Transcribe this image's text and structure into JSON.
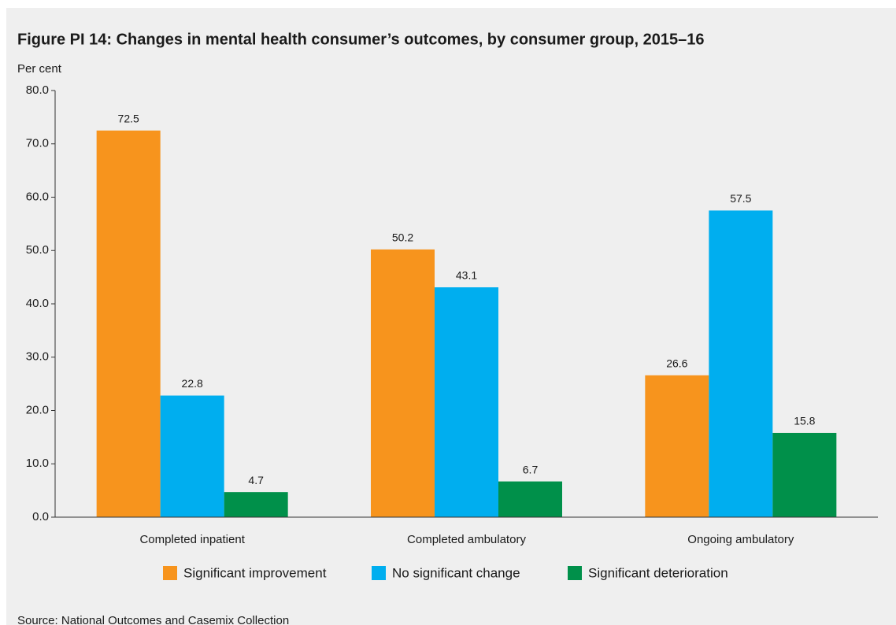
{
  "chart_data": {
    "type": "bar",
    "title": "Figure PI 14: Changes in mental health consumer’s outcomes, by consumer group, 2015–16",
    "y_label": "Per cent",
    "source": "Source: National Outcomes and Casemix Collection",
    "categories": [
      "Completed inpatient",
      "Completed ambulatory",
      "Ongoing ambulatory"
    ],
    "series": [
      {
        "name": "Significant improvement",
        "color": "#f7941d",
        "values": [
          72.5,
          50.2,
          26.6
        ]
      },
      {
        "name": "No significant  change",
        "color": "#00aeef",
        "values": [
          22.8,
          43.1,
          57.5
        ]
      },
      {
        "name": "Significant deterioration",
        "color": "#00904a",
        "values": [
          4.7,
          6.7,
          15.8
        ]
      }
    ],
    "ylim": [
      0,
      80
    ],
    "yticks": [
      {
        "value": 0,
        "label": "0.0"
      },
      {
        "value": 10,
        "label": "10.0"
      },
      {
        "value": 20,
        "label": "20.0"
      },
      {
        "value": 30,
        "label": "30.0"
      },
      {
        "value": 40,
        "label": "40.0"
      },
      {
        "value": 50,
        "label": "50.0"
      },
      {
        "value": 60,
        "label": "60.0"
      },
      {
        "value": 70,
        "label": "70.0"
      },
      {
        "value": 80,
        "label": "80.0"
      }
    ],
    "legend": "bottom",
    "grid": false
  }
}
